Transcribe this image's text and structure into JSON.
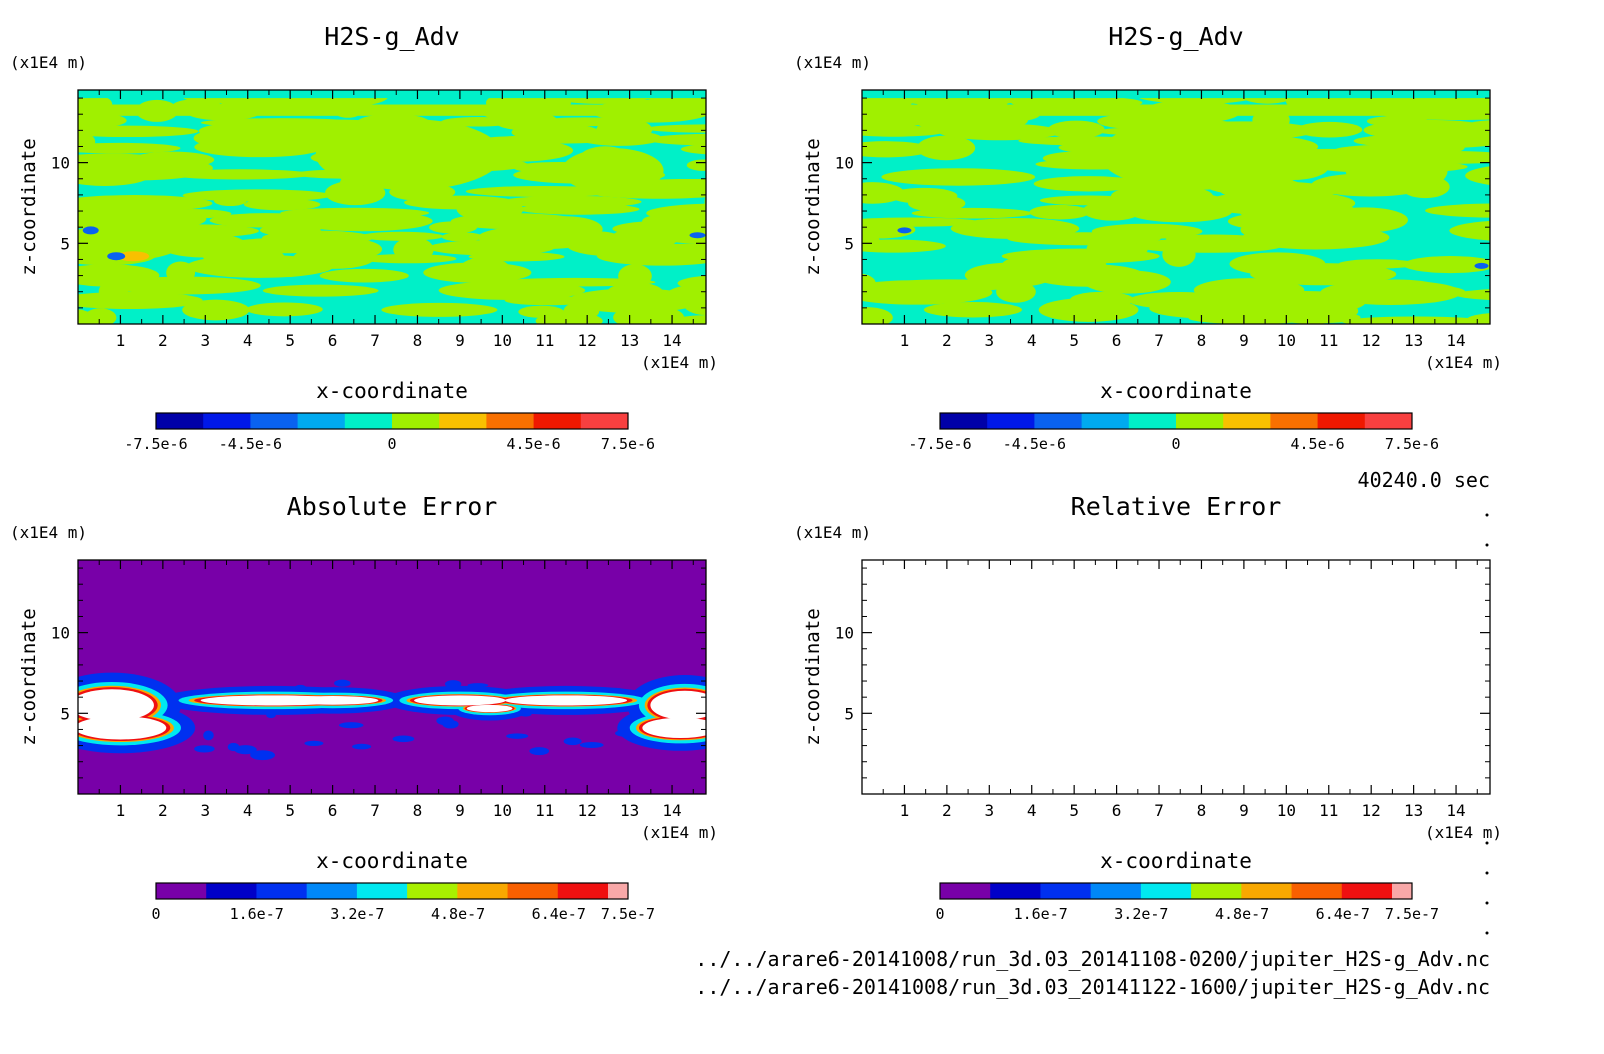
{
  "time_label": "40240.0 sec",
  "file_paths": [
    "../../arare6-20141008/run_3d.03_20141108-0200/jupiter_H2S-g_Adv.nc",
    "../../arare6-20141008/run_3d.03_20141122-1600/jupiter_H2S-g_Adv.nc"
  ],
  "chart_data": [
    {
      "type": "heatmap",
      "title": "H2S-g_Adv",
      "xlabel": "x-coordinate",
      "ylabel": "z-coordinate",
      "x_unit": "(x1E4 m)",
      "y_unit": "(x1E4 m)",
      "xlim": [
        0,
        14.8
      ],
      "ylim": [
        0,
        14.5
      ],
      "x_ticks": [
        "1",
        "2",
        "3",
        "4",
        "5",
        "6",
        "7",
        "8",
        "9",
        "10",
        "11",
        "12",
        "13",
        "14"
      ],
      "y_ticks": [
        "5",
        "10"
      ],
      "colorbar": {
        "labels": [
          "-7.5e-6",
          "-4.5e-6",
          "0",
          "4.5e-6",
          "7.5e-6"
        ],
        "label_values": [
          -7.5e-06,
          -4.5e-06,
          0,
          4.5e-06,
          7.5e-06
        ],
        "range": [
          -7.5e-06,
          7.5e-06
        ],
        "colors": [
          "#0000a8",
          "#0018e8",
          "#0a62f0",
          "#00aaf0",
          "#00f0c8",
          "#a0f000",
          "#f8c000",
          "#f87000",
          "#f01800",
          "#f84040"
        ]
      },
      "field_colors": [
        "#00f0c8",
        "#a0f000"
      ],
      "accent_colors": [
        "#0a62f0",
        "#f8c000"
      ]
    },
    {
      "type": "heatmap",
      "title": "H2S-g_Adv",
      "xlabel": "x-coordinate",
      "ylabel": "z-coordinate",
      "x_unit": "(x1E4 m)",
      "y_unit": "(x1E4 m)",
      "xlim": [
        0,
        14.8
      ],
      "ylim": [
        0,
        14.5
      ],
      "x_ticks": [
        "1",
        "2",
        "3",
        "4",
        "5",
        "6",
        "7",
        "8",
        "9",
        "10",
        "11",
        "12",
        "13",
        "14"
      ],
      "y_ticks": [
        "5",
        "10"
      ],
      "colorbar": {
        "labels": [
          "-7.5e-6",
          "-4.5e-6",
          "0",
          "4.5e-6",
          "7.5e-6"
        ],
        "label_values": [
          -7.5e-06,
          -4.5e-06,
          0,
          4.5e-06,
          7.5e-06
        ],
        "range": [
          -7.5e-06,
          7.5e-06
        ],
        "colors": [
          "#0000a8",
          "#0018e8",
          "#0a62f0",
          "#00aaf0",
          "#00f0c8",
          "#a0f000",
          "#f8c000",
          "#f87000",
          "#f01800",
          "#f84040"
        ]
      },
      "field_colors": [
        "#00f0c8",
        "#a0f000"
      ],
      "accent_colors": [
        "#0a62f0"
      ]
    },
    {
      "type": "heatmap",
      "title": "Absolute Error",
      "xlabel": "x-coordinate",
      "ylabel": "z-coordinate",
      "x_unit": "(x1E4 m)",
      "y_unit": "(x1E4 m)",
      "xlim": [
        0,
        14.8
      ],
      "ylim": [
        0,
        14.5
      ],
      "x_ticks": [
        "1",
        "2",
        "3",
        "4",
        "5",
        "6",
        "7",
        "8",
        "9",
        "10",
        "11",
        "12",
        "13",
        "14"
      ],
      "y_ticks": [
        "5",
        "10"
      ],
      "background_color": "#7800a8",
      "colorbar": {
        "labels": [
          "0",
          "1.6e-7",
          "3.2e-7",
          "4.8e-7",
          "6.4e-7",
          "7.5e-7"
        ],
        "label_values": [
          0,
          1.6e-07,
          3.2e-07,
          4.8e-07,
          6.4e-07,
          7.5e-07
        ],
        "range": [
          0,
          7.5e-07
        ],
        "colors": [
          "#7800a8",
          "#0000c8",
          "#0030f0",
          "#0088f8",
          "#00e8f0",
          "#a8f000",
          "#f8a800",
          "#f86000",
          "#f01010",
          "#f8a8a8"
        ]
      },
      "feature_colors": [
        "#ffffff",
        "#0030f0",
        "#00e8f0",
        "#f8a800",
        "#f01010"
      ]
    },
    {
      "type": "heatmap",
      "title": "Relative Error",
      "xlabel": "x-coordinate",
      "ylabel": "z-coordinate",
      "x_unit": "(x1E4 m)",
      "y_unit": "(x1E4 m)",
      "xlim": [
        0,
        14.8
      ],
      "ylim": [
        0,
        14.5
      ],
      "x_ticks": [
        "1",
        "2",
        "3",
        "4",
        "5",
        "6",
        "7",
        "8",
        "9",
        "10",
        "11",
        "12",
        "13",
        "14"
      ],
      "y_ticks": [
        "5",
        "10"
      ],
      "background_color": "#ffffff",
      "colorbar": {
        "labels": [
          "0",
          "1.6e-7",
          "3.2e-7",
          "4.8e-7",
          "6.4e-7",
          "7.5e-7"
        ],
        "label_values": [
          0,
          1.6e-07,
          3.2e-07,
          4.8e-07,
          6.4e-07,
          7.5e-07
        ],
        "range": [
          0,
          7.5e-07
        ],
        "colors": [
          "#7800a8",
          "#0000c8",
          "#0030f0",
          "#0088f8",
          "#00e8f0",
          "#a8f000",
          "#f8a800",
          "#f86000",
          "#f01010",
          "#f8a8a8"
        ]
      }
    }
  ]
}
